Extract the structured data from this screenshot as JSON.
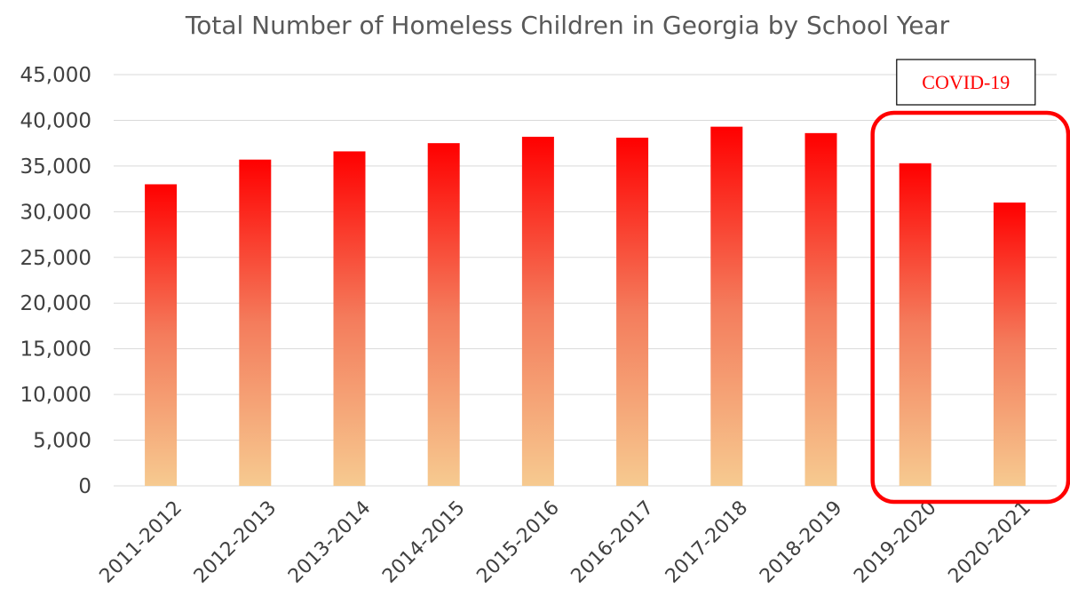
{
  "chart_data": {
    "type": "bar",
    "title": "Total Number of Homeless Children in Georgia by School Year",
    "xlabel": "",
    "ylabel": "",
    "categories": [
      "2011-2012",
      "2012-2013",
      "2013-2014",
      "2014-2015",
      "2015-2016",
      "2016-2017",
      "2017-2018",
      "2018-2019",
      "2019-2020",
      "2020-2021"
    ],
    "values": [
      33000,
      35700,
      36600,
      37500,
      38200,
      38100,
      39300,
      38600,
      35300,
      31000
    ],
    "ylim": [
      0,
      45000
    ],
    "yticks": [
      "0",
      "5,000",
      "10,000",
      "15,000",
      "20,000",
      "25,000",
      "30,000",
      "35,000",
      "40,000",
      "45,000"
    ],
    "grid": true,
    "legend": "none",
    "bar_gradient": {
      "top": "#ff0000",
      "middle": "#f47c5c",
      "bottom": "#f6ca90"
    },
    "annotation": {
      "label": "COVID-19",
      "color": "#ff0000",
      "highlight_categories": [
        "2019-2020",
        "2020-2021"
      ]
    }
  }
}
